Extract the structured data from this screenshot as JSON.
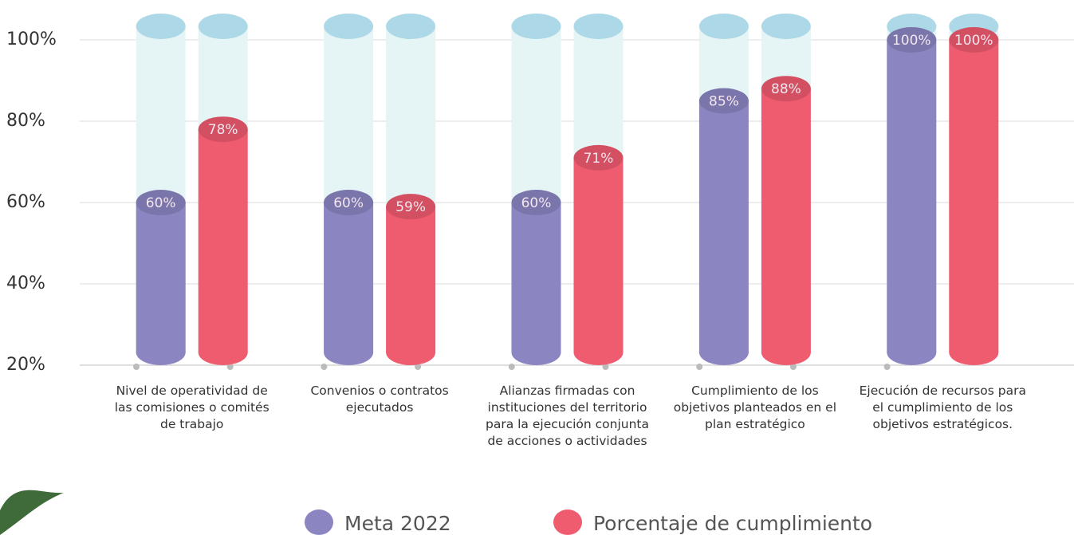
{
  "chart_data": {
    "type": "cylinder-bar",
    "categories": [
      "Nivel de operatividad de las comisiones o comités de trabajo",
      "Convenios o contratos ejecutados",
      "Alianzas firmadas con instituciones del territorio para la ejecución conjunta de acciones o actividades",
      "Cumplimiento de los objetivos planteados en el plan estratégico",
      "Ejecución de recursos para el cumplimiento de los objetivos estratégicos."
    ],
    "series": [
      {
        "name": "Meta 2022",
        "color": "#8b85c1",
        "values": [
          60,
          60,
          60,
          85,
          100
        ],
        "value_labels": [
          "60%",
          "60%",
          "60%",
          "85%",
          "100%"
        ]
      },
      {
        "name": "Porcentaje de cumplimiento",
        "color": "#ef5b6f",
        "values": [
          78,
          59,
          71,
          88,
          100
        ],
        "value_labels": [
          "78%",
          "59%",
          "71%",
          "88%",
          "100%"
        ]
      }
    ],
    "ylim": [
      20,
      100
    ],
    "yticks": [
      {
        "value": 20,
        "label": "20%"
      },
      {
        "value": 40,
        "label": "40%"
      },
      {
        "value": 60,
        "label": "60%"
      },
      {
        "value": 80,
        "label": "80%"
      },
      {
        "value": 100,
        "label": "100%"
      }
    ],
    "grid": true
  }
}
